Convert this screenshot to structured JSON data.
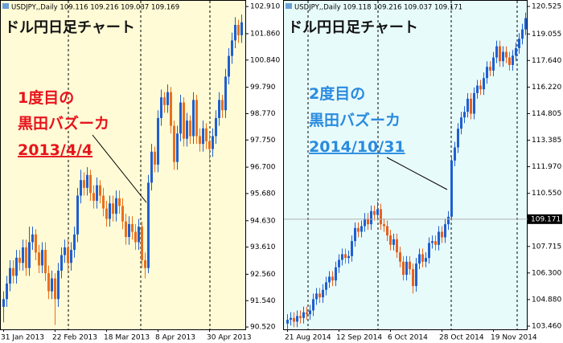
{
  "chart_data": [
    {
      "type": "candlestick",
      "header": "USDJPY,,Daily 109.116 109.216 109.037 109.169",
      "title": "ドル円日足チャート",
      "annotation": {
        "lines": [
          "1度目の",
          "黒田バズーカ",
          "2013/4/4"
        ],
        "color": "#e8141c"
      },
      "background": "#fffbd6",
      "up_color": "#1f5fd0",
      "down_color": "#e8701e",
      "categories": [
        "31 Jan 2013",
        null,
        null,
        null,
        null,
        null,
        null,
        null,
        null,
        null,
        null,
        null,
        null,
        null,
        null,
        null,
        "22 Feb 2013",
        null,
        null,
        null,
        null,
        null,
        null,
        null,
        null,
        null,
        null,
        null,
        null,
        null,
        null,
        null,
        "18 Mar 2013",
        null,
        null,
        null,
        null,
        null,
        null,
        null,
        null,
        null,
        null,
        null,
        null,
        null,
        null,
        null,
        "8 Apr 2013",
        null,
        null,
        null,
        null,
        null,
        null,
        null,
        null,
        null,
        null,
        null,
        null,
        null,
        null,
        null,
        "30 Apr 2013",
        null,
        null,
        null,
        null,
        null,
        null,
        null,
        null,
        null,
        null
      ],
      "open": [
        91.3,
        91.6,
        92.2,
        92.8,
        92.5,
        93.2,
        93.0,
        93.6,
        92.8,
        93.8,
        94.1,
        93.4,
        92.9,
        93.5,
        92.6,
        91.9,
        92.4,
        91.6,
        92.7,
        93.3,
        93.6,
        93.0,
        93.5,
        94.1,
        95.6,
        96.2,
        95.9,
        96.4,
        95.7,
        95.4,
        96.0,
        95.6,
        95.1,
        94.7,
        95.3,
        94.9,
        95.5,
        95.2,
        94.6,
        94.0,
        94.5,
        94.2,
        93.8,
        94.4,
        93.1,
        92.8,
        96.1,
        97.3,
        96.8,
        98.6,
        99.4,
        99.1,
        99.6,
        98.3,
        96.9,
        98.0,
        99.2,
        97.8,
        98.5,
        97.9,
        99.3,
        97.9,
        97.6,
        98.2,
        97.7,
        97.4,
        97.9,
        98.6,
        99.3,
        98.9,
        100.2,
        101.0,
        101.6,
        102.2,
        101.8
      ],
      "high": [
        91.9,
        92.5,
        93.1,
        93.1,
        93.5,
        93.5,
        93.9,
        93.9,
        94.4,
        94.4,
        94.3,
        93.7,
        93.8,
        93.8,
        92.9,
        92.7,
        92.6,
        93.0,
        93.6,
        93.9,
        93.9,
        93.8,
        94.4,
        95.9,
        96.6,
        96.5,
        96.7,
        96.6,
        96.0,
        96.3,
        96.2,
        95.9,
        95.4,
        95.6,
        95.6,
        95.8,
        95.8,
        95.5,
        94.9,
        94.8,
        94.8,
        94.5,
        94.7,
        94.6,
        93.4,
        96.4,
        97.6,
        97.5,
        98.9,
        99.7,
        99.6,
        99.9,
        99.8,
        98.5,
        98.3,
        99.5,
        99.4,
        98.8,
        98.7,
        99.6,
        99.5,
        98.2,
        98.5,
        98.4,
        98.0,
        98.2,
        98.9,
        99.6,
        99.5,
        100.5,
        101.3,
        101.9,
        102.5,
        102.4,
        102.6
      ],
      "low": [
        90.7,
        91.3,
        91.9,
        92.2,
        92.2,
        92.7,
        92.7,
        92.5,
        92.5,
        93.5,
        93.1,
        92.6,
        92.6,
        92.3,
        91.6,
        91.6,
        90.6,
        91.3,
        92.4,
        93.0,
        92.7,
        92.7,
        93.2,
        93.8,
        95.3,
        95.6,
        95.6,
        95.4,
        95.1,
        95.1,
        95.3,
        94.8,
        94.4,
        94.4,
        94.6,
        94.6,
        94.9,
        94.3,
        93.7,
        93.7,
        93.9,
        93.5,
        93.5,
        92.8,
        92.4,
        92.6,
        95.8,
        96.5,
        96.5,
        98.3,
        98.8,
        98.8,
        98.0,
        96.6,
        96.6,
        97.7,
        97.5,
        97.5,
        97.6,
        97.6,
        97.6,
        97.3,
        97.3,
        97.4,
        97.0,
        97.1,
        97.6,
        98.3,
        98.6,
        98.6,
        99.9,
        100.7,
        101.3,
        101.5,
        101.5
      ],
      "close": [
        91.6,
        92.2,
        92.8,
        92.5,
        93.2,
        93.0,
        93.6,
        92.8,
        93.8,
        94.1,
        93.4,
        92.9,
        93.5,
        92.6,
        91.9,
        92.4,
        91.6,
        92.7,
        93.3,
        93.6,
        93.0,
        93.5,
        94.1,
        95.6,
        96.2,
        95.9,
        96.4,
        95.7,
        95.4,
        96.0,
        95.6,
        95.1,
        94.7,
        95.3,
        94.9,
        95.5,
        95.2,
        94.6,
        94.0,
        94.5,
        94.2,
        93.8,
        94.4,
        93.1,
        92.8,
        96.1,
        97.3,
        96.8,
        98.6,
        99.4,
        99.1,
        99.6,
        98.3,
        96.9,
        98.0,
        99.2,
        97.8,
        98.5,
        97.9,
        99.3,
        97.9,
        97.6,
        98.2,
        97.7,
        97.4,
        97.9,
        98.6,
        99.3,
        98.9,
        100.2,
        101.0,
        101.6,
        102.2,
        101.8,
        102.3
      ],
      "ylim": [
        90.43,
        103.07
      ],
      "yticks": [
        {
          "value": 102.91,
          "label": "102.910"
        },
        {
          "value": 101.86,
          "label": "101.860"
        },
        {
          "value": 100.84,
          "label": "100.840"
        },
        {
          "value": 99.79,
          "label": "99.790"
        },
        {
          "value": 98.77,
          "label": "98.770"
        },
        {
          "value": 97.75,
          "label": "97.750"
        },
        {
          "value": 96.7,
          "label": "96.700"
        },
        {
          "value": 95.68,
          "label": "95.680"
        },
        {
          "value": 94.63,
          "label": "94.630"
        },
        {
          "value": 93.61,
          "label": "93.610"
        },
        {
          "value": 92.56,
          "label": "92.560"
        },
        {
          "value": 91.54,
          "label": "91.540"
        },
        {
          "value": 90.52,
          "label": "90.520"
        }
      ]
    },
    {
      "type": "candlestick",
      "header": "USDJPY,,Daily 109.118 109.216 109.037 109.171",
      "title": "ドル円日足チャート",
      "annotation": {
        "lines": [
          "2度目の",
          "黒田バズーカ",
          "2014/10/31"
        ],
        "color": "#2a8be0"
      },
      "background": "#e8fbfb",
      "up_color": "#1f5fd0",
      "down_color": "#e8601e",
      "current_price": 109.171,
      "categories": [
        "21 Aug 2014",
        null,
        null,
        null,
        null,
        null,
        null,
        null,
        null,
        null,
        null,
        null,
        null,
        null,
        null,
        null,
        "12 Sep 2014",
        null,
        null,
        null,
        null,
        null,
        null,
        null,
        null,
        null,
        null,
        null,
        null,
        null,
        null,
        null,
        "6 Oct 2014",
        null,
        null,
        null,
        null,
        null,
        null,
        null,
        null,
        null,
        null,
        null,
        null,
        null,
        null,
        null,
        "28 Oct 2014",
        null,
        null,
        null,
        null,
        null,
        null,
        null,
        null,
        null,
        null,
        null,
        null,
        null,
        null,
        null,
        "19 Nov 2014",
        null,
        null,
        null,
        null,
        null,
        null,
        null,
        null,
        null,
        null
      ],
      "open": [
        103.6,
        103.8,
        103.9,
        103.7,
        104.0,
        103.9,
        104.2,
        104.1,
        104.3,
        104.9,
        105.2,
        105.0,
        105.4,
        105.8,
        106.1,
        105.9,
        106.6,
        107.0,
        107.3,
        107.1,
        107.2,
        108.0,
        108.7,
        108.5,
        108.8,
        109.2,
        108.9,
        109.6,
        109.4,
        109.7,
        108.9,
        108.8,
        108.3,
        107.8,
        108.1,
        107.4,
        106.9,
        106.2,
        106.9,
        106.5,
        105.6,
        106.8,
        107.3,
        106.9,
        107.1,
        107.9,
        108.0,
        107.8,
        108.5,
        108.2,
        108.9,
        109.3,
        112.3,
        113.0,
        114.0,
        114.6,
        114.9,
        115.6,
        114.8,
        115.9,
        116.3,
        116.1,
        116.7,
        117.3,
        117.1,
        117.8,
        118.4,
        117.6,
        118.1,
        117.8,
        117.4,
        117.9,
        118.3,
        118.8,
        119.3
      ],
      "high": [
        104.1,
        104.2,
        104.2,
        104.3,
        104.3,
        104.5,
        104.5,
        104.6,
        105.2,
        105.5,
        105.5,
        105.7,
        106.1,
        106.4,
        106.4,
        106.9,
        107.3,
        107.6,
        107.6,
        107.5,
        108.3,
        109.0,
        109.0,
        109.1,
        109.5,
        109.5,
        109.9,
        109.9,
        110.1,
        110.0,
        109.2,
        109.1,
        108.6,
        108.4,
        108.4,
        107.7,
        107.2,
        107.2,
        107.2,
        106.8,
        107.1,
        107.6,
        107.6,
        107.4,
        108.2,
        108.3,
        108.3,
        108.8,
        108.8,
        109.2,
        109.6,
        112.5,
        113.3,
        114.3,
        114.9,
        115.2,
        115.9,
        115.9,
        116.2,
        116.6,
        116.6,
        117.0,
        117.6,
        117.6,
        118.1,
        118.7,
        118.7,
        118.4,
        118.4,
        118.1,
        118.2,
        118.6,
        119.1,
        119.6,
        120.2
      ],
      "low": [
        103.3,
        103.5,
        103.4,
        103.4,
        103.6,
        103.6,
        103.8,
        103.8,
        104.0,
        104.6,
        104.7,
        104.7,
        105.1,
        105.5,
        105.6,
        105.6,
        106.3,
        106.7,
        106.8,
        106.8,
        106.9,
        107.7,
        108.2,
        108.2,
        108.5,
        108.6,
        108.6,
        109.1,
        109.1,
        108.6,
        108.5,
        108.0,
        107.5,
        107.5,
        107.1,
        106.6,
        105.9,
        105.9,
        106.2,
        105.2,
        105.3,
        106.5,
        106.6,
        106.6,
        106.8,
        107.6,
        107.5,
        107.5,
        107.9,
        107.9,
        108.6,
        109.1,
        112.0,
        112.7,
        113.7,
        114.3,
        114.6,
        114.5,
        114.5,
        115.6,
        115.8,
        115.8,
        116.4,
        116.8,
        116.8,
        117.5,
        117.3,
        117.3,
        117.5,
        117.1,
        117.1,
        117.6,
        118.0,
        118.5,
        119.0
      ],
      "close": [
        103.8,
        103.9,
        103.7,
        104.0,
        103.9,
        104.2,
        104.1,
        104.3,
        104.9,
        105.2,
        105.0,
        105.4,
        105.8,
        106.1,
        105.9,
        106.6,
        107.0,
        107.3,
        107.1,
        107.2,
        108.0,
        108.7,
        108.5,
        108.8,
        109.2,
        108.9,
        109.6,
        109.4,
        109.7,
        108.9,
        108.8,
        108.3,
        107.8,
        108.1,
        107.4,
        106.9,
        106.2,
        106.9,
        106.5,
        105.6,
        106.8,
        107.3,
        106.9,
        107.1,
        107.9,
        108.0,
        107.8,
        108.5,
        108.2,
        108.9,
        109.3,
        112.3,
        113.0,
        114.0,
        114.6,
        114.9,
        115.6,
        114.8,
        115.9,
        116.3,
        116.1,
        116.7,
        117.3,
        117.1,
        117.8,
        118.4,
        117.6,
        118.1,
        117.8,
        117.4,
        117.9,
        118.3,
        118.8,
        119.3,
        119.9
      ],
      "ylim": [
        103.29,
        120.74
      ],
      "yticks": [
        {
          "value": 120.525,
          "label": "120.525"
        },
        {
          "value": 119.055,
          "label": "119.055"
        },
        {
          "value": 117.64,
          "label": "117.640"
        },
        {
          "value": 116.22,
          "label": "116.220"
        },
        {
          "value": 114.805,
          "label": "114.805"
        },
        {
          "value": 113.385,
          "label": "113.385"
        },
        {
          "value": 111.97,
          "label": "111.970"
        },
        {
          "value": 110.55,
          "label": "110.550"
        },
        {
          "value": 107.715,
          "label": "107.715"
        },
        {
          "value": 106.3,
          "label": "106.300"
        },
        {
          "value": 104.88,
          "label": "104.880"
        },
        {
          "value": 103.46,
          "label": "103.460"
        }
      ]
    }
  ]
}
